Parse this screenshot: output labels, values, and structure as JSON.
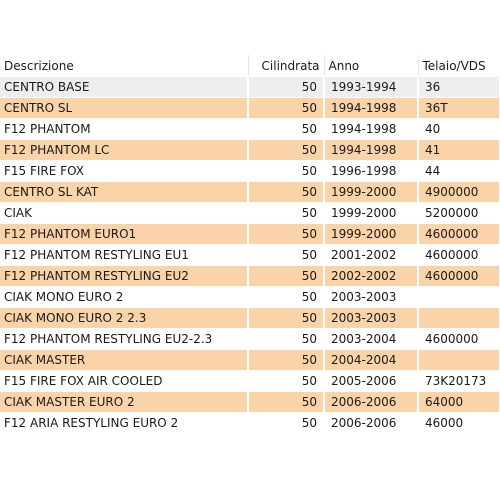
{
  "table": {
    "headers": {
      "descrizione": "Descrizione",
      "cilindrata": "Cilindrata",
      "anno": "Anno",
      "telaio": "Telaio/VDS"
    },
    "rows": [
      {
        "descrizione": "CENTRO BASE",
        "cilindrata": "50",
        "anno": "1993-1994",
        "telaio": "36"
      },
      {
        "descrizione": "CENTRO SL",
        "cilindrata": "50",
        "anno": "1994-1998",
        "telaio": "36T"
      },
      {
        "descrizione": "F12 PHANTOM",
        "cilindrata": "50",
        "anno": "1994-1998",
        "telaio": "40"
      },
      {
        "descrizione": "F12 PHANTOM LC",
        "cilindrata": "50",
        "anno": "1994-1998",
        "telaio": "41"
      },
      {
        "descrizione": "F15 FIRE FOX",
        "cilindrata": "50",
        "anno": "1996-1998",
        "telaio": "44"
      },
      {
        "descrizione": "CENTRO SL KAT",
        "cilindrata": "50",
        "anno": "1999-2000",
        "telaio": "4900000"
      },
      {
        "descrizione": "CIAK",
        "cilindrata": "50",
        "anno": "1999-2000",
        "telaio": "5200000"
      },
      {
        "descrizione": "F12 PHANTOM EURO1",
        "cilindrata": "50",
        "anno": "1999-2000",
        "telaio": "4600000"
      },
      {
        "descrizione": "F12 PHANTOM RESTYLING EU1",
        "cilindrata": "50",
        "anno": "2001-2002",
        "telaio": "4600000"
      },
      {
        "descrizione": "F12 PHANTOM RESTYLING EU2",
        "cilindrata": "50",
        "anno": "2002-2002",
        "telaio": "4600000"
      },
      {
        "descrizione": "CIAK MONO EURO 2",
        "cilindrata": "50",
        "anno": "2003-2003",
        "telaio": ""
      },
      {
        "descrizione": "CIAK MONO EURO 2 2.3",
        "cilindrata": "50",
        "anno": "2003-2003",
        "telaio": ""
      },
      {
        "descrizione": "F12 PHANTOM RESTYLING EU2-2.3",
        "cilindrata": "50",
        "anno": "2003-2004",
        "telaio": "4600000"
      },
      {
        "descrizione": "CIAK MASTER",
        "cilindrata": "50",
        "anno": "2004-2004",
        "telaio": ""
      },
      {
        "descrizione": "F15 FIRE FOX AIR COOLED",
        "cilindrata": "50",
        "anno": "2005-2006",
        "telaio": "73K20173"
      },
      {
        "descrizione": "CIAK MASTER EURO 2",
        "cilindrata": "50",
        "anno": "2006-2006",
        "telaio": "64000"
      },
      {
        "descrizione": "F12 ARIA RESTYLING EURO 2",
        "cilindrata": "50",
        "anno": "2006-2006",
        "telaio": "46000"
      }
    ]
  },
  "colors": {
    "row_light": "#eeeeee",
    "row_orange": "#fbd3a8",
    "row_white": "#ffffff",
    "text": "#1a1a1a"
  }
}
